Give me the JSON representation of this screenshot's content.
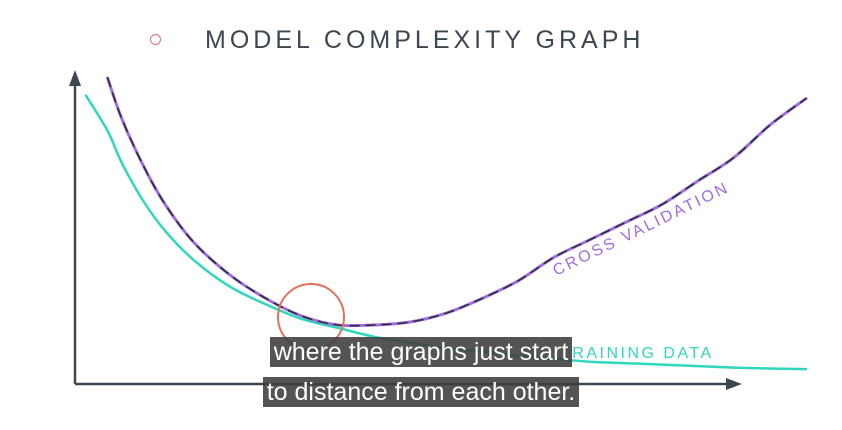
{
  "title": "MODEL COMPLEXITY GRAPH",
  "colors": {
    "axis": "#3d4752",
    "cross_validation": "#a26ce0",
    "cross_validation_dark": "#2b3138",
    "training": "#2fd8bd",
    "marker": "#e2725b",
    "title_dot": "#e06b8b"
  },
  "chart_data": {
    "type": "line",
    "title": "MODEL COMPLEXITY GRAPH",
    "xlabel": "",
    "ylabel": "",
    "grid": false,
    "xlim": [
      0,
      100
    ],
    "ylim": [
      0,
      100
    ],
    "series": [
      {
        "name": "CROSS VALIDATION",
        "x": [
          3,
          5,
          8,
          11,
          15,
          20,
          25,
          30,
          35,
          40,
          45,
          50,
          55,
          60,
          65,
          70,
          75,
          80,
          85,
          90,
          95,
          100
        ],
        "y": [
          100,
          86,
          70,
          57,
          44,
          33,
          25,
          19,
          16,
          16,
          17,
          20,
          25,
          31,
          39,
          45,
          51,
          57,
          65,
          73,
          84,
          93
        ]
      },
      {
        "name": "TRAINING DATA",
        "x": [
          0,
          3,
          5,
          8,
          11,
          15,
          20,
          25,
          30,
          35,
          40,
          45,
          50,
          55,
          60,
          65,
          70,
          75,
          80,
          85,
          90,
          95,
          100
        ],
        "y": [
          94,
          82,
          71,
          58,
          48,
          38,
          29,
          23,
          18,
          15,
          12,
          10,
          8,
          7,
          5.5,
          4.5,
          3.5,
          3,
          2.5,
          2,
          1.5,
          1.2,
          1
        ]
      }
    ],
    "annotations": [
      {
        "label": "CROSS VALIDATION"
      },
      {
        "label": "TRAINING DATA"
      }
    ]
  },
  "caption": {
    "line1": "where the graphs just start",
    "line2": "to distance from each other."
  }
}
